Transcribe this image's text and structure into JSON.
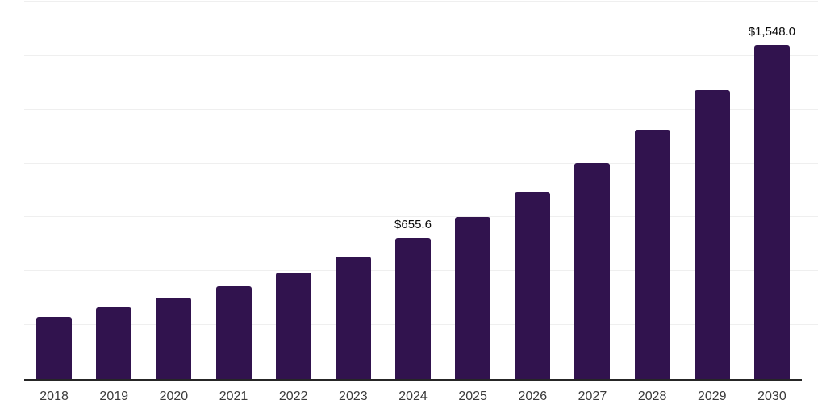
{
  "chart_data": {
    "type": "bar",
    "categories": [
      "2018",
      "2019",
      "2020",
      "2021",
      "2022",
      "2023",
      "2024",
      "2025",
      "2026",
      "2027",
      "2028",
      "2029",
      "2030"
    ],
    "values": [
      288,
      331,
      376,
      431,
      494,
      570,
      655.6,
      752,
      866,
      1002,
      1154,
      1339,
      1548.0
    ],
    "value_labels": [
      null,
      null,
      null,
      null,
      null,
      null,
      "$655.6",
      null,
      null,
      null,
      null,
      null,
      "$1,548.0"
    ],
    "title": "",
    "xlabel": "",
    "ylabel": "",
    "ylim": [
      0,
      1750
    ],
    "gridline_step": 250,
    "grid": true,
    "legend": false,
    "colors": {
      "bar": "#31134e",
      "gridline": "#efefef",
      "axis_line": "#262626",
      "tick_label": "#3a3a3a",
      "data_label": "#0a0a0a",
      "background": "#ffffff"
    }
  }
}
